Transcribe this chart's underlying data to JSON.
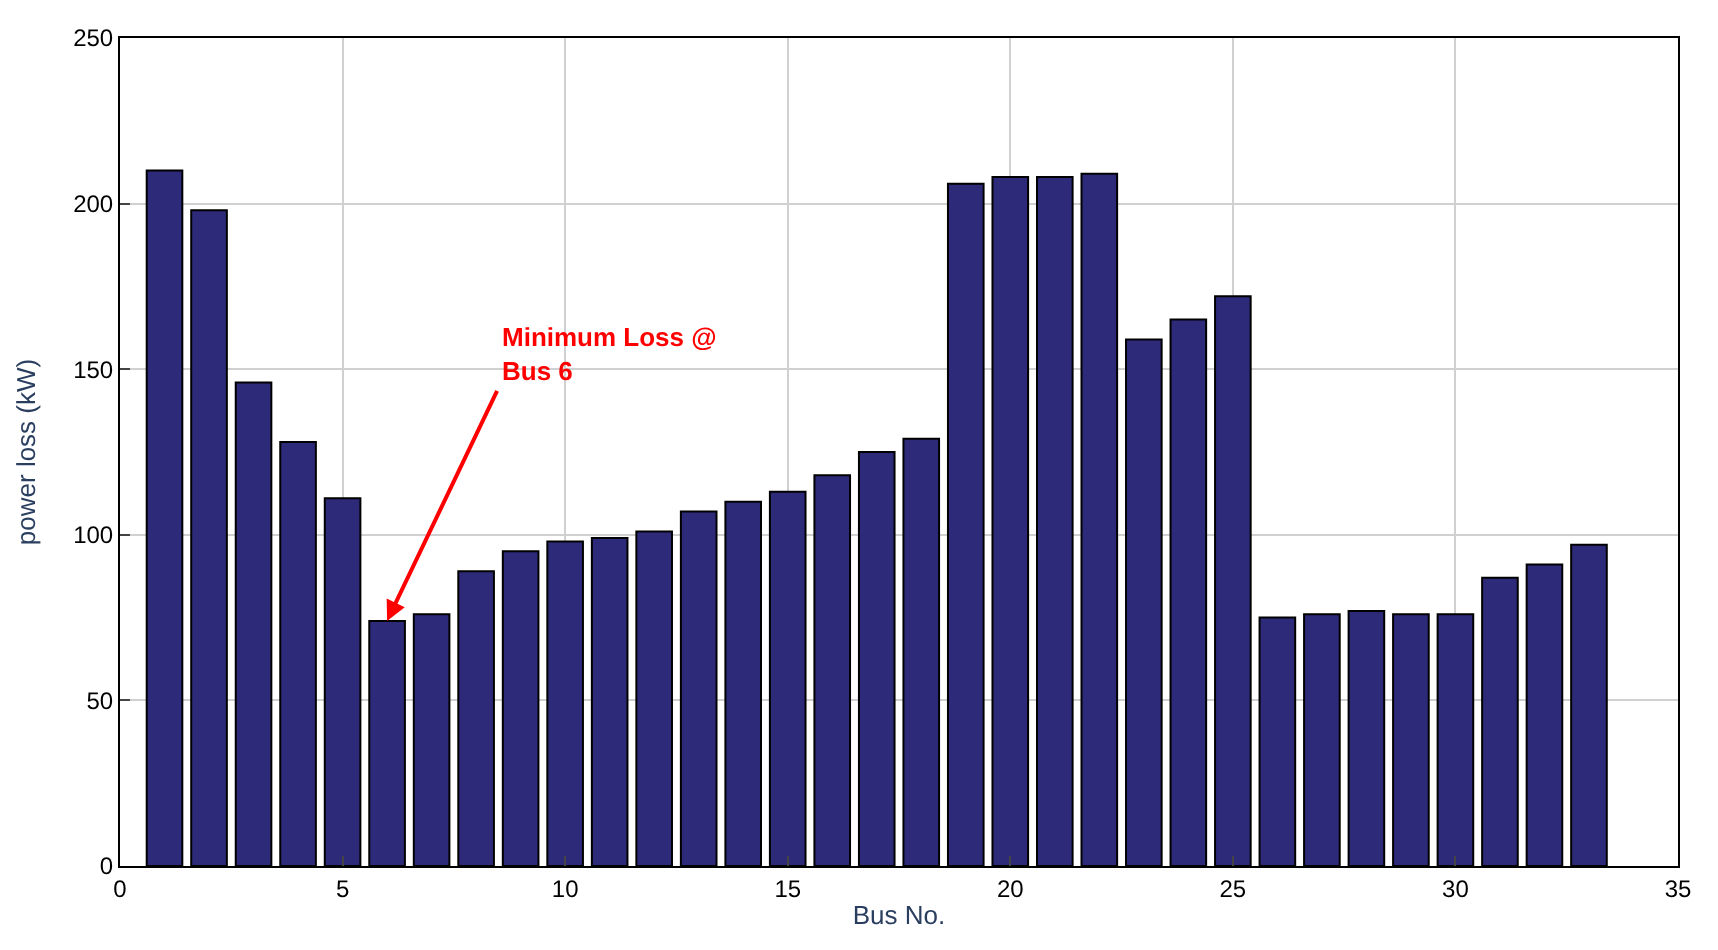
{
  "chart_data": {
    "type": "bar",
    "xlabel": "Bus No.",
    "ylabel": "power loss (kW)",
    "x": [
      1,
      2,
      3,
      4,
      5,
      6,
      7,
      8,
      9,
      10,
      11,
      12,
      13,
      14,
      15,
      16,
      17,
      18,
      19,
      20,
      21,
      22,
      23,
      24,
      25,
      26,
      27,
      28,
      29,
      30,
      31,
      32,
      33
    ],
    "values": [
      210,
      198,
      146,
      128,
      111,
      74,
      76,
      89,
      95,
      98,
      99,
      101,
      107,
      110,
      113,
      118,
      125,
      129,
      206,
      208,
      208,
      209,
      159,
      165,
      172,
      75,
      76,
      77,
      76,
      76,
      87,
      91,
      97
    ],
    "color": "#2e2a7a",
    "xlim": [
      0,
      35
    ],
    "xticks": [
      0,
      5,
      10,
      15,
      20,
      25,
      30,
      35
    ],
    "ylim": [
      0,
      250
    ],
    "yticks": [
      0,
      50,
      100,
      150,
      200,
      250
    ],
    "grid": true,
    "legend": false,
    "annotations": [
      {
        "text": "Minimum Loss @\nBus 6",
        "x": 6,
        "y": 74
      }
    ]
  }
}
